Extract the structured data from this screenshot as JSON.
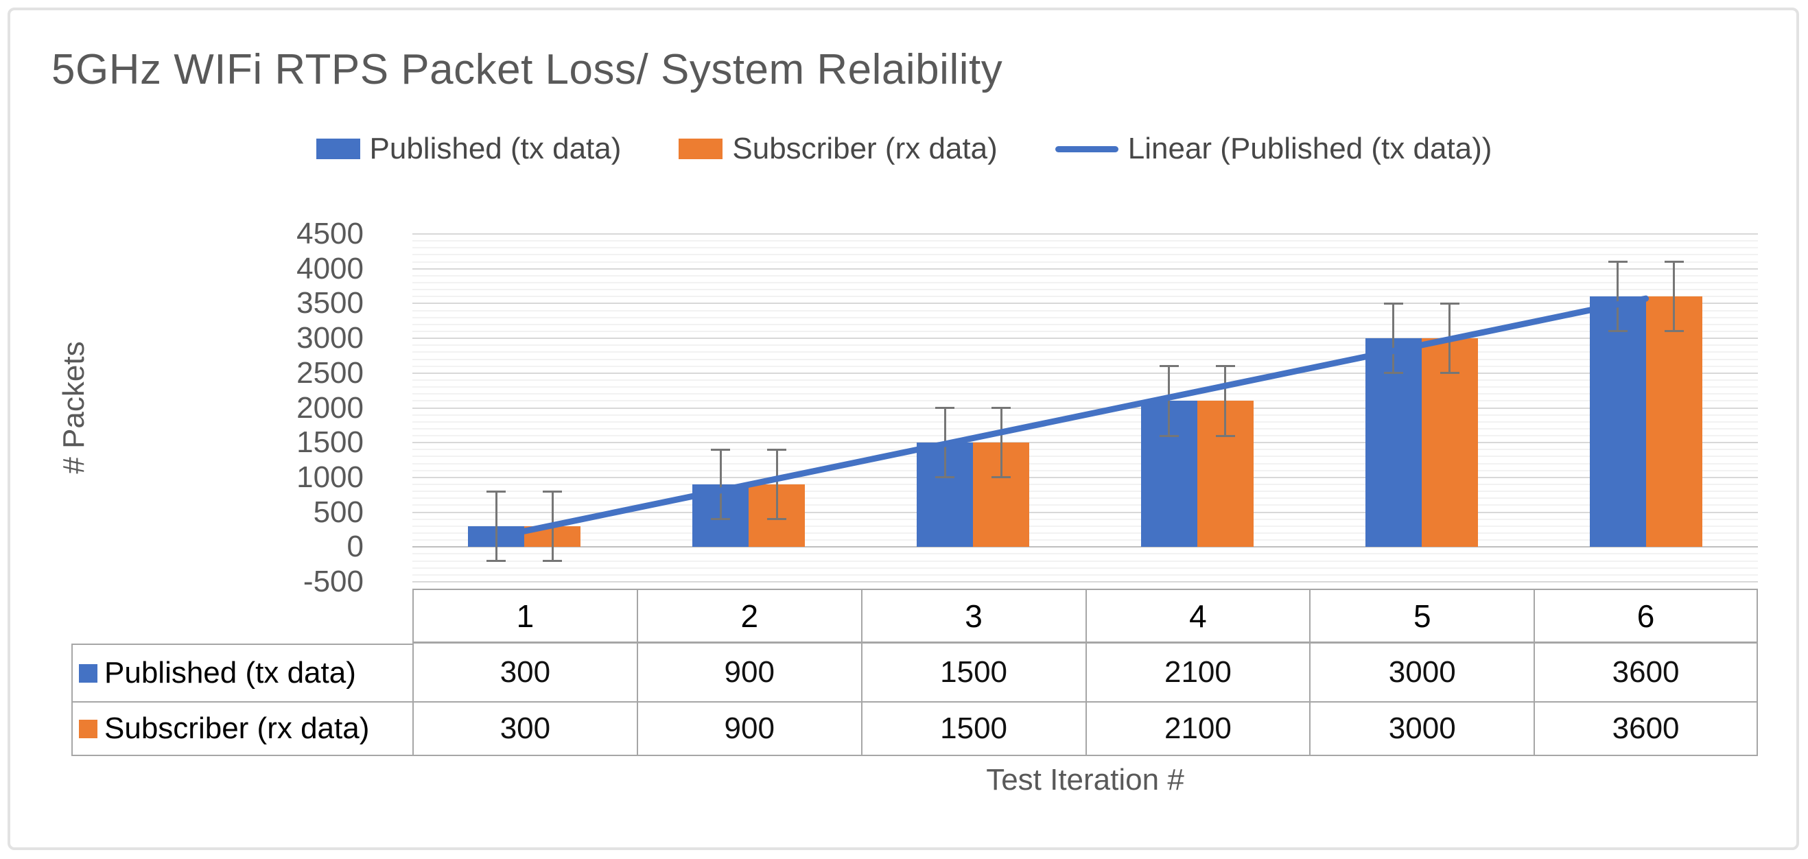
{
  "chart": {
    "title": "5GHz WIFi RTPS Packet Loss/ System Relaibility",
    "y_axis_title": "# Packets",
    "x_axis_title": "Test Iteration #",
    "legend": [
      {
        "label": "Published (tx data)",
        "type": "bar",
        "color": "#4472C4"
      },
      {
        "label": "Subscriber (rx data)",
        "type": "bar",
        "color": "#ED7D31"
      },
      {
        "label": "Linear (Published (tx data))",
        "type": "line",
        "color": "#4472C4"
      }
    ],
    "colors": {
      "series_blue": "#4472C4",
      "series_orange": "#ED7D31",
      "trendline": "#4472C4",
      "error_bar": "#767676",
      "text_gray": "#595959",
      "table_border": "#a6a6a6"
    }
  },
  "chart_data": {
    "type": "bar",
    "title": "5GHz WIFi RTPS Packet Loss/ System Relaibility",
    "categories": [
      "1",
      "2",
      "3",
      "4",
      "5",
      "6"
    ],
    "series": [
      {
        "name": "Published (tx data)",
        "color": "#4472C4",
        "values": [
          300,
          900,
          1500,
          2100,
          3000,
          3600
        ]
      },
      {
        "name": "Subscriber (rx data)",
        "color": "#ED7D31",
        "values": [
          300,
          900,
          1500,
          2100,
          3000,
          3600
        ]
      }
    ],
    "trendline": {
      "name": "Linear (Published (tx data))",
      "based_on": "Published (tx data)",
      "color": "#4472C4",
      "style": "linear"
    },
    "error_bars": {
      "plus_minus": 500
    },
    "xlabel": "Test Iteration #",
    "ylabel": "# Packets",
    "ylim": [
      -500,
      4500
    ],
    "yticks": [
      4500,
      4000,
      3500,
      3000,
      2500,
      2000,
      1500,
      1000,
      500,
      0,
      -500
    ],
    "ytick_step": 500,
    "minor_grid_step": 100,
    "grid": true,
    "legend_position": "top",
    "data_table_shown": true
  }
}
